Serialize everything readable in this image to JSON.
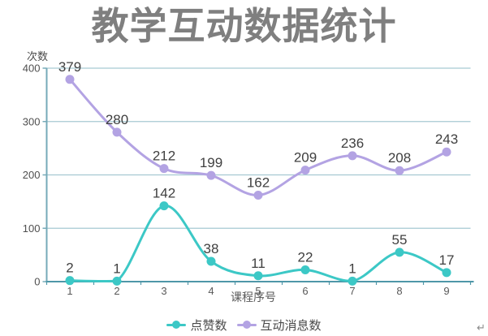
{
  "chart_data": {
    "type": "line",
    "title": "教学互动数据统计",
    "xlabel": "课程序号",
    "ylabel": "次数",
    "categories": [
      "1",
      "2",
      "3",
      "4",
      "5",
      "6",
      "7",
      "8",
      "9"
    ],
    "series": [
      {
        "name": "点赞数",
        "color": "#3cc8c6",
        "values": [
          2,
          1,
          142,
          38,
          11,
          22,
          1,
          55,
          17
        ]
      },
      {
        "name": "互动消息数",
        "color": "#b3a3e3",
        "values": [
          379,
          280,
          212,
          199,
          162,
          209,
          236,
          208,
          243
        ]
      }
    ],
    "ylim": [
      0,
      400
    ],
    "yticks": [
      0,
      100,
      200,
      300,
      400
    ],
    "grid": true,
    "smooth": true,
    "legend_position": "bottom",
    "colors": {
      "grid": "#a6c9d2",
      "axis_y": "#76aab8",
      "axis_x": "#4f97a8",
      "data_label": "#404040",
      "tick_label": "#4f4f4f",
      "title": "#7f7f7f"
    }
  },
  "artifacts": {
    "return_mark": "↵"
  }
}
